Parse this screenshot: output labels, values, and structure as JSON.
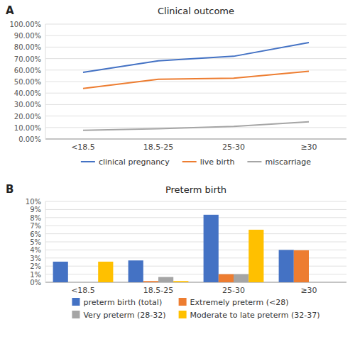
{
  "chart_data": [
    {
      "type": "line",
      "title": "Clinical outcome",
      "annotations": [
        "A"
      ],
      "categories": [
        "<18.5",
        "18.5-25",
        "25-30",
        "≥30"
      ],
      "series": [
        {
          "name": "clinical pregnancy",
          "color": "#4472C4",
          "values": [
            58.0,
            68.0,
            72.0,
            84.0
          ]
        },
        {
          "name": "live birth",
          "color": "#ED7D31",
          "values": [
            44.0,
            52.0,
            53.0,
            59.0
          ]
        },
        {
          "name": "miscarriage",
          "color": "#A5A5A5",
          "values": [
            7.5,
            9.0,
            11.0,
            15.0
          ]
        }
      ],
      "ylim": [
        0,
        100
      ],
      "yticks": [
        {
          "value": 0,
          "label": "0.00%"
        },
        {
          "value": 10,
          "label": "10.00%"
        },
        {
          "value": 20,
          "label": "20.00%"
        },
        {
          "value": 30,
          "label": "30.00%"
        },
        {
          "value": 40,
          "label": "40.00%"
        },
        {
          "value": 50,
          "label": "50.00%"
        },
        {
          "value": 60,
          "label": "60.00%"
        },
        {
          "value": 70,
          "label": "70.00%"
        },
        {
          "value": 80,
          "label": "80.00%"
        },
        {
          "value": 90,
          "label": "90.00%"
        },
        {
          "value": 100,
          "label": "100.00%"
        }
      ],
      "grid": true,
      "legend": "bottom"
    },
    {
      "type": "bar",
      "title": "Preterm birth",
      "annotations": [
        "B"
      ],
      "categories": [
        "<18.5",
        "18.5-25",
        "25-30",
        "≥30"
      ],
      "series": [
        {
          "name": "preterm birth (total)",
          "color": "#4472C4",
          "values": [
            2.55,
            2.7,
            8.35,
            4.0
          ]
        },
        {
          "name": "Extremely preterm (<28)",
          "color": "#ED7D31",
          "values": [
            0.0,
            0.15,
            1.0,
            3.95
          ]
        },
        {
          "name": "Very preterm (28-32)",
          "color": "#A5A5A5",
          "values": [
            0.0,
            0.65,
            1.0,
            0.0
          ]
        },
        {
          "name": "Moderate to late preterm (32-37)",
          "color": "#FFC000",
          "values": [
            2.55,
            0.15,
            6.5,
            0.0
          ]
        }
      ],
      "ylim": [
        0,
        10
      ],
      "yticks": [
        {
          "value": 0,
          "label": "0%"
        },
        {
          "value": 1,
          "label": "1%"
        },
        {
          "value": 2,
          "label": "2%"
        },
        {
          "value": 3,
          "label": "3%"
        },
        {
          "value": 4,
          "label": "4%"
        },
        {
          "value": 5,
          "label": "5%"
        },
        {
          "value": 6,
          "label": "6%"
        },
        {
          "value": 7,
          "label": "7%"
        },
        {
          "value": 8,
          "label": "8%"
        },
        {
          "value": 9,
          "label": "9%"
        },
        {
          "value": 10,
          "label": "10%"
        }
      ],
      "grid": true,
      "legend": "bottom"
    }
  ]
}
